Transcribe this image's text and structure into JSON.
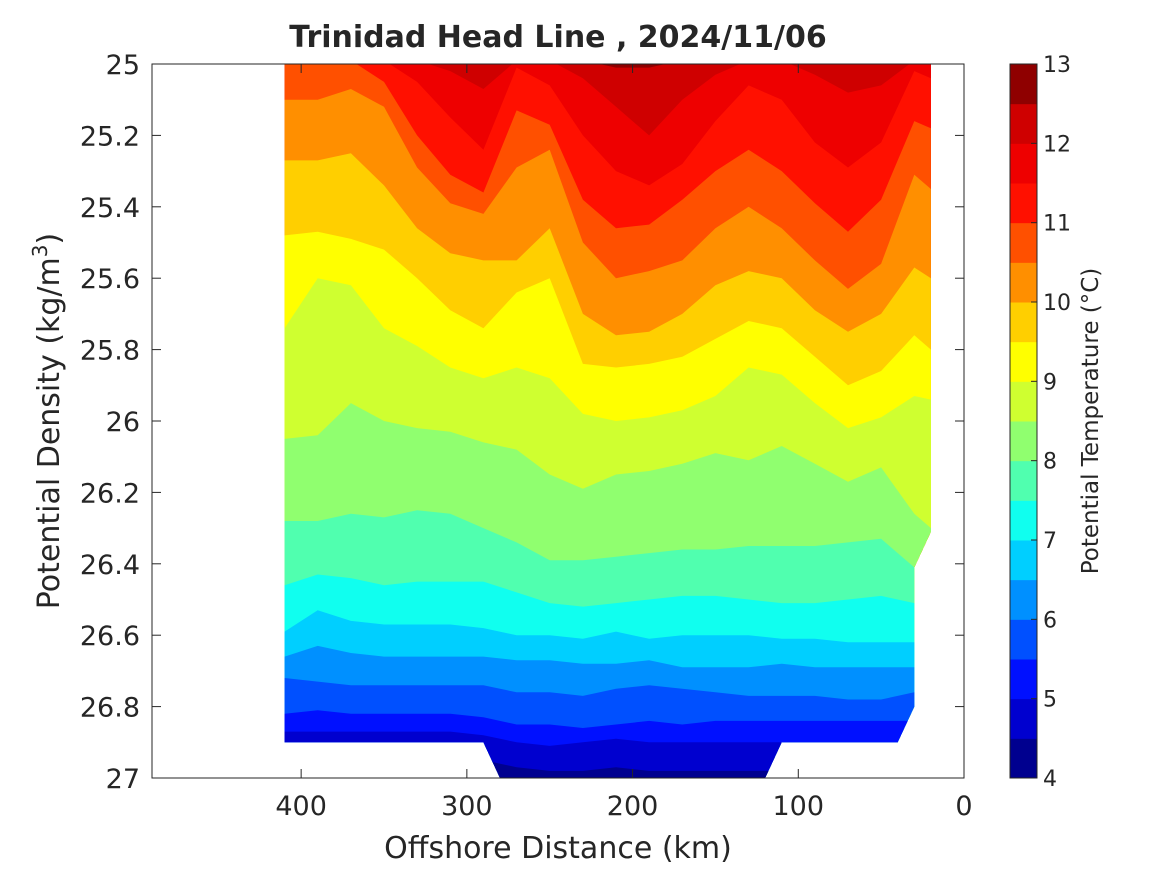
{
  "chart_data": {
    "type": "heatmap",
    "subtype": "filled-contour",
    "title": "Trinidad Head Line , 2024/11/06",
    "xlabel": "Offshore Distance (km)",
    "ylabel_main": "Potential Density (kg/m",
    "ylabel_sup": "3",
    "ylabel_tail": ")",
    "xlim": [
      0,
      490
    ],
    "x_reversed": true,
    "x_ticks": [
      400,
      300,
      200,
      100,
      0
    ],
    "ylim": [
      25,
      27
    ],
    "y_reversed": true,
    "y_ticks": [
      "25",
      "25.2",
      "25.4",
      "25.6",
      "25.8",
      "26",
      "26.2",
      "26.4",
      "26.6",
      "26.8",
      "27"
    ],
    "colorbar": {
      "label": "Potential Temperature (°C)",
      "range": [
        4,
        13
      ],
      "ticks": [
        13,
        12,
        11,
        10,
        9,
        8,
        7,
        6,
        5,
        4
      ],
      "levels": [
        4,
        4.5,
        5,
        5.5,
        6,
        6.5,
        7,
        7.5,
        8,
        8.5,
        9,
        9.5,
        10,
        10.5,
        11,
        11.5,
        12,
        12.5,
        13
      ],
      "colors": [
        "#00008f",
        "#0000cf",
        "#0010ff",
        "#0050ff",
        "#0090ff",
        "#00cfff",
        "#10ffef",
        "#50ffaf",
        "#90ff6f",
        "#cfff30",
        "#ffff00",
        "#ffcf00",
        "#ff8f00",
        "#ff5000",
        "#ff1000",
        "#ee0000",
        "#cf0000",
        "#8f0000"
      ]
    },
    "contour_x": [
      410,
      390,
      370,
      350,
      330,
      310,
      290,
      270,
      250,
      230,
      210,
      190,
      170,
      150,
      130,
      110,
      90,
      70,
      50,
      30,
      20
    ],
    "isopycnals": [
      {
        "t": 12.5,
        "d": [
          24.99,
          24.99,
          24.99,
          24.99,
          24.99,
          24.99,
          24.99,
          24.99,
          24.99,
          24.99,
          25.01,
          25.01,
          24.99,
          24.99,
          24.99,
          24.99,
          24.99,
          24.99,
          24.99,
          24.99,
          24.99
        ]
      },
      {
        "t": 12.0,
        "d": [
          24.99,
          24.99,
          24.99,
          24.99,
          24.99,
          25.02,
          25.07,
          24.99,
          24.99,
          25.04,
          25.12,
          25.2,
          25.1,
          25.03,
          24.99,
          24.99,
          25.03,
          25.08,
          25.06,
          24.99,
          24.99
        ]
      },
      {
        "t": 11.5,
        "d": [
          24.99,
          24.99,
          24.99,
          24.99,
          25.05,
          25.15,
          25.24,
          25.01,
          25.06,
          25.2,
          25.3,
          25.34,
          25.28,
          25.16,
          25.06,
          25.1,
          25.22,
          25.29,
          25.22,
          25.02,
          25.04
        ]
      },
      {
        "t": 11.0,
        "d": [
          25.0,
          24.99,
          24.99,
          25.05,
          25.2,
          25.31,
          25.36,
          25.13,
          25.17,
          25.38,
          25.46,
          25.45,
          25.38,
          25.3,
          25.24,
          25.3,
          25.39,
          25.47,
          25.38,
          25.16,
          25.18
        ]
      },
      {
        "t": 10.5,
        "d": [
          25.1,
          25.1,
          25.07,
          25.12,
          25.29,
          25.39,
          25.42,
          25.29,
          25.24,
          25.5,
          25.6,
          25.58,
          25.55,
          25.46,
          25.4,
          25.46,
          25.55,
          25.63,
          25.56,
          25.31,
          25.35
        ]
      },
      {
        "t": 10.0,
        "d": [
          25.27,
          25.27,
          25.25,
          25.34,
          25.46,
          25.53,
          25.55,
          25.55,
          25.46,
          25.7,
          25.76,
          25.75,
          25.7,
          25.62,
          25.58,
          25.6,
          25.69,
          25.75,
          25.7,
          25.57,
          25.6
        ]
      },
      {
        "t": 9.5,
        "d": [
          25.48,
          25.47,
          25.49,
          25.52,
          25.6,
          25.69,
          25.74,
          25.64,
          25.6,
          25.84,
          25.85,
          25.84,
          25.82,
          25.77,
          25.72,
          25.74,
          25.82,
          25.9,
          25.86,
          25.76,
          25.8
        ]
      },
      {
        "t": 9.0,
        "d": [
          25.74,
          25.6,
          25.62,
          25.74,
          25.79,
          25.85,
          25.88,
          25.85,
          25.88,
          25.98,
          26.0,
          25.99,
          25.97,
          25.93,
          25.85,
          25.87,
          25.95,
          26.02,
          25.99,
          25.93,
          25.94
        ]
      },
      {
        "t": 8.5,
        "d": [
          26.05,
          26.04,
          25.95,
          26.0,
          26.02,
          26.03,
          26.06,
          26.08,
          26.15,
          26.19,
          26.15,
          26.14,
          26.12,
          26.09,
          26.11,
          26.07,
          26.12,
          26.17,
          26.13,
          26.26,
          26.3
        ]
      },
      {
        "t": 8.0,
        "d": [
          26.28,
          26.28,
          26.26,
          26.27,
          26.25,
          26.26,
          26.3,
          26.34,
          26.39,
          26.39,
          26.38,
          26.37,
          26.36,
          26.36,
          26.35,
          26.35,
          26.35,
          26.34,
          26.33,
          26.41,
          26.41
        ]
      },
      {
        "t": 7.5,
        "d": [
          26.46,
          26.43,
          26.44,
          26.46,
          26.45,
          26.45,
          26.45,
          26.48,
          26.51,
          26.52,
          26.51,
          26.5,
          26.49,
          26.49,
          26.5,
          26.51,
          26.51,
          26.5,
          26.49,
          26.51,
          26.51
        ]
      },
      {
        "t": 7.0,
        "d": [
          26.59,
          26.53,
          26.56,
          26.57,
          26.57,
          26.57,
          26.58,
          26.6,
          26.6,
          26.61,
          26.59,
          26.61,
          26.6,
          26.6,
          26.6,
          26.61,
          26.61,
          26.62,
          26.62,
          26.62,
          26.62
        ]
      },
      {
        "t": 6.5,
        "d": [
          26.66,
          26.63,
          26.65,
          26.66,
          26.66,
          26.66,
          26.66,
          26.67,
          26.67,
          26.68,
          26.68,
          26.67,
          26.69,
          26.69,
          26.69,
          26.68,
          26.69,
          26.69,
          26.69,
          26.69,
          26.69
        ]
      },
      {
        "t": 6.0,
        "d": [
          26.72,
          26.73,
          26.74,
          26.74,
          26.74,
          26.74,
          26.74,
          26.76,
          26.76,
          26.77,
          26.75,
          26.74,
          26.75,
          26.76,
          26.77,
          26.77,
          26.77,
          26.78,
          26.78,
          26.76,
          26.76
        ]
      },
      {
        "t": 5.5,
        "d": [
          26.82,
          26.81,
          26.82,
          26.82,
          26.82,
          26.82,
          26.83,
          26.85,
          26.85,
          26.86,
          26.85,
          26.84,
          26.85,
          26.84,
          26.84,
          26.84,
          26.84,
          26.84,
          26.84,
          26.84,
          26.84
        ]
      },
      {
        "t": 5.0,
        "d": [
          26.87,
          26.87,
          26.87,
          26.87,
          26.87,
          26.87,
          26.88,
          26.9,
          26.91,
          26.9,
          26.89,
          26.9,
          26.9,
          26.9,
          26.9,
          26.9,
          26.9,
          26.9,
          26.9,
          26.9,
          26.9
        ]
      },
      {
        "t": 4.5,
        "d": [
          26.95,
          26.95,
          26.95,
          26.95,
          26.95,
          26.95,
          26.95,
          26.97,
          26.98,
          26.98,
          26.97,
          26.98,
          26.98,
          26.98,
          26.98,
          26.98,
          26.98,
          26.98,
          26.98,
          26.98,
          26.98
        ]
      }
    ],
    "bottom_outline": [
      [
        410,
        26.9
      ],
      [
        290,
        26.9
      ],
      [
        280,
        27.0
      ],
      [
        120,
        27.0
      ],
      [
        110,
        26.9
      ],
      [
        40,
        26.9
      ],
      [
        30,
        26.8
      ],
      [
        30,
        26.41
      ],
      [
        20,
        26.31
      ],
      [
        20,
        25.0
      ],
      [
        410,
        25.0
      ]
    ]
  }
}
